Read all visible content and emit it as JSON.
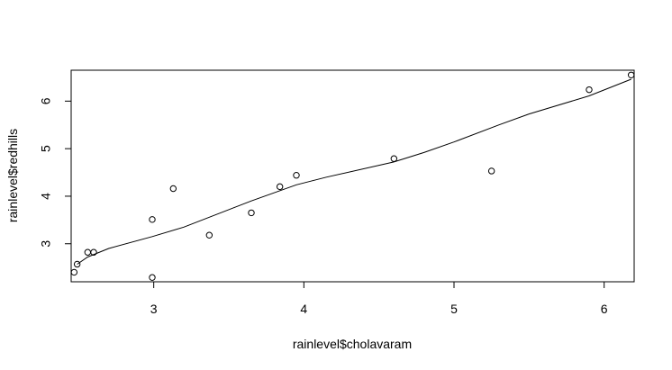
{
  "chart_data": {
    "type": "scatter",
    "title": "",
    "xlabel": "rainlevel$cholavaram",
    "ylabel": "rainlevel$redhills",
    "xlim": [
      2.45,
      6.2
    ],
    "ylim": [
      2.2,
      6.65
    ],
    "xticks": [
      3,
      4,
      5,
      6
    ],
    "yticks": [
      3,
      4,
      5,
      6
    ],
    "grid": false,
    "legend": "none",
    "point_color": "#000000",
    "line_color": "#000000",
    "series": [
      {
        "type": "points",
        "x": [
          2.47,
          2.49,
          2.56,
          2.6,
          2.99,
          2.99,
          3.13,
          3.37,
          3.65,
          3.84,
          3.95,
          4.6,
          5.25,
          5.9,
          6.18
        ],
        "y": [
          2.4,
          2.57,
          2.82,
          2.82,
          3.51,
          2.29,
          4.16,
          3.18,
          3.65,
          4.2,
          4.44,
          4.79,
          4.53,
          6.24,
          6.55
        ]
      },
      {
        "type": "smooth-line",
        "x": [
          2.49,
          2.56,
          2.7,
          2.99,
          3.2,
          3.65,
          3.95,
          4.15,
          4.6,
          4.8,
          5.0,
          5.3,
          5.5,
          5.9,
          6.18
        ],
        "y": [
          2.57,
          2.72,
          2.9,
          3.15,
          3.35,
          3.9,
          4.24,
          4.4,
          4.72,
          4.92,
          5.14,
          5.5,
          5.73,
          6.11,
          6.46
        ]
      }
    ]
  }
}
